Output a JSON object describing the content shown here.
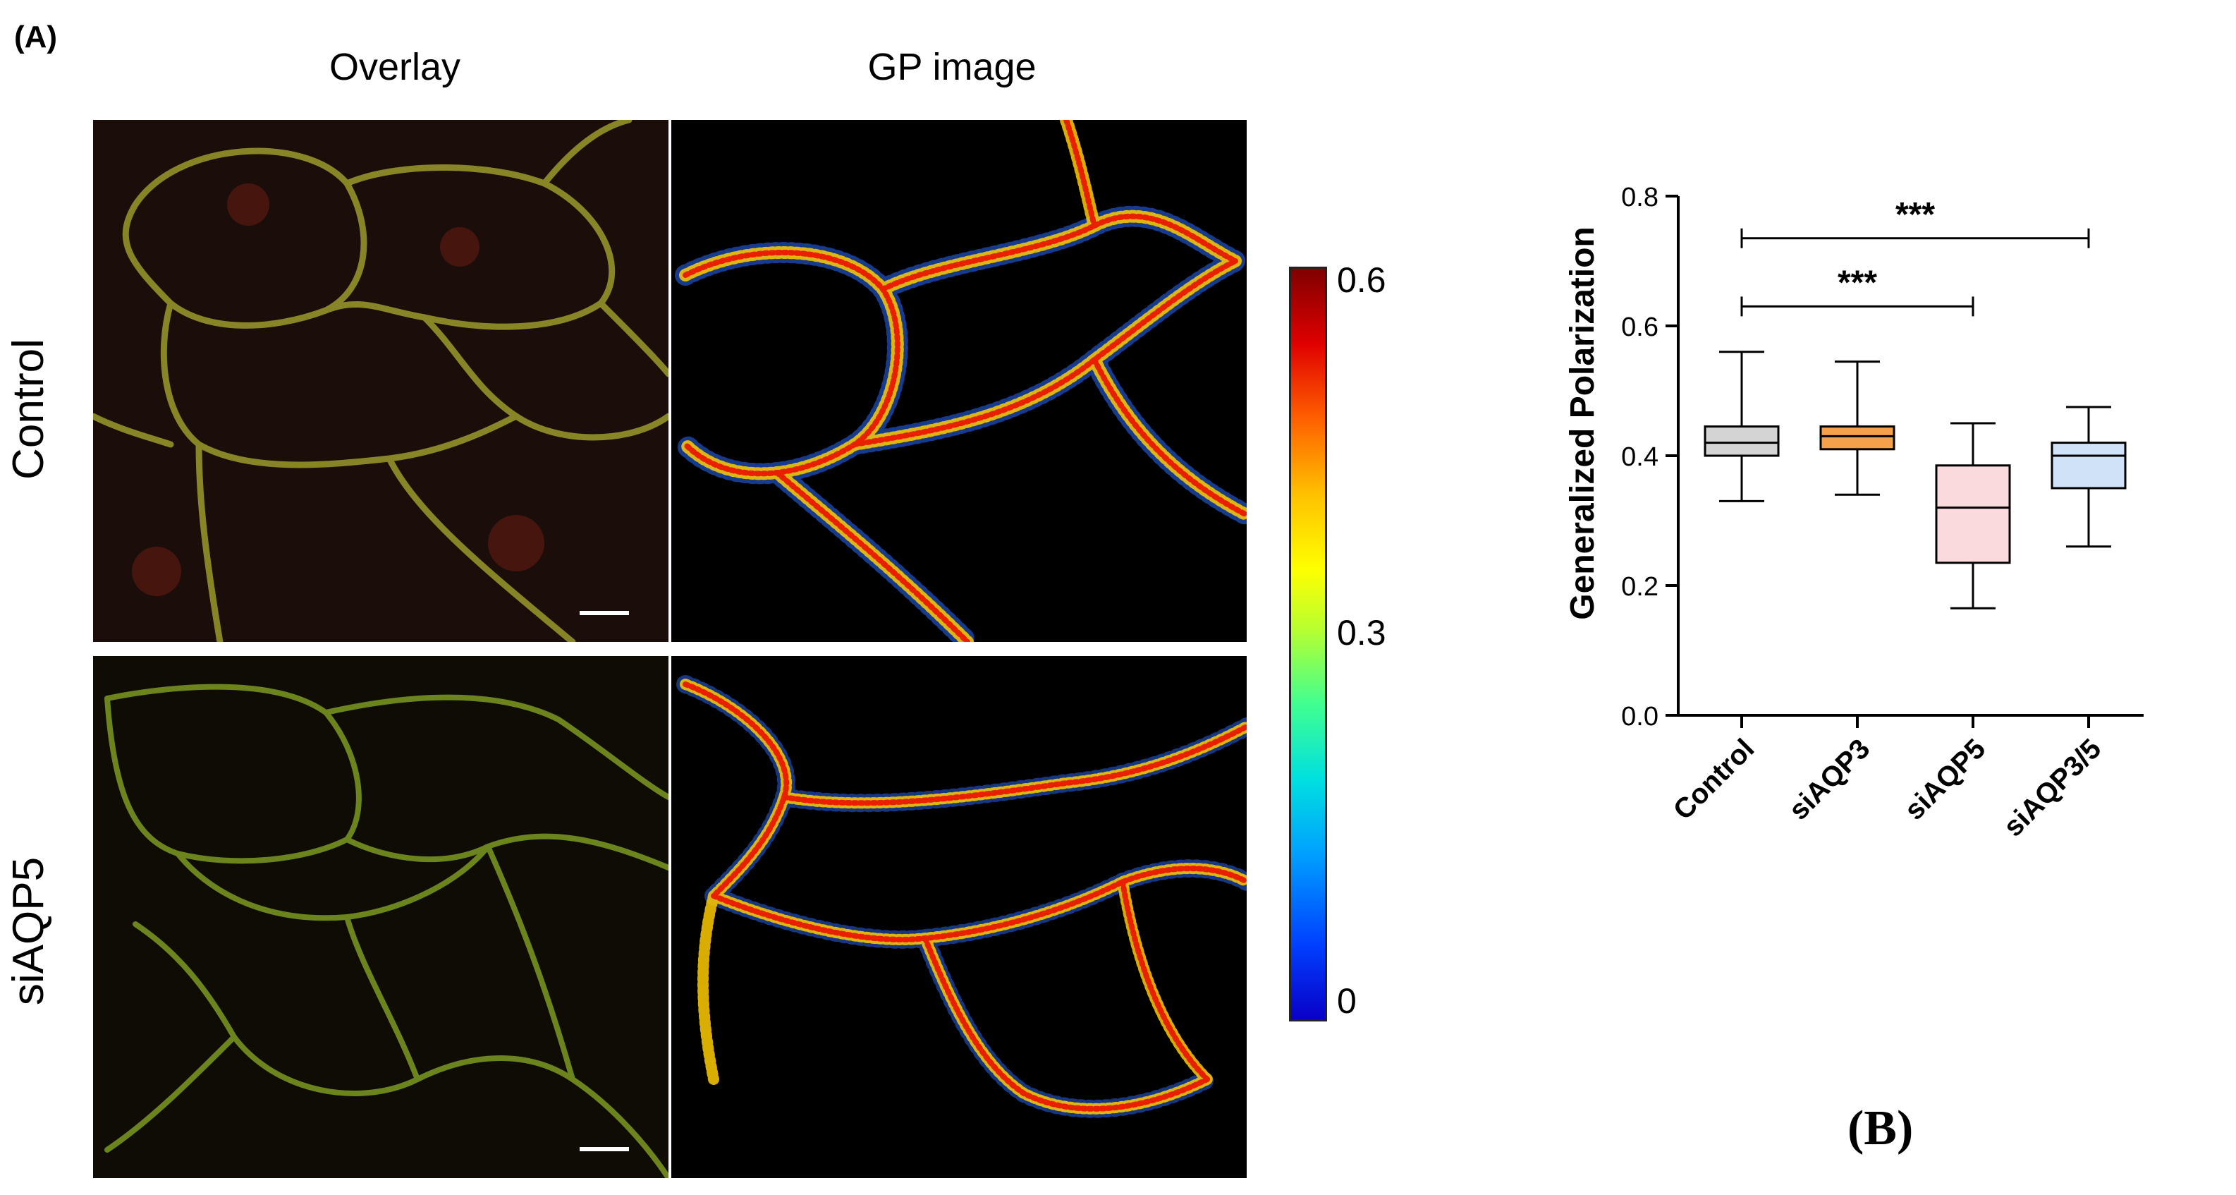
{
  "panel_a": {
    "label": "(A)",
    "columns": [
      "Overlay",
      "GP image"
    ],
    "rows": [
      "Control",
      "siAQP5"
    ],
    "colorbar": {
      "max": "0.6",
      "mid": "0.3",
      "min": "0",
      "colormap": "jet"
    }
  },
  "panel_b": {
    "label": "(B)",
    "significance": [
      {
        "from": "Control",
        "to": "siAQP3/5",
        "text": "***"
      },
      {
        "from": "Control",
        "to": "siAQP5",
        "text": "***"
      }
    ]
  },
  "chart_data": {
    "type": "box",
    "ylabel": "Generalized Polarization",
    "xlabel": "",
    "ylim": [
      0.0,
      0.8
    ],
    "yticks": [
      "0.0",
      "0.2",
      "0.4",
      "0.6",
      "0.8"
    ],
    "categories": [
      "Control",
      "siAQP3",
      "siAQP5",
      "siAQP3/5"
    ],
    "boxes": [
      {
        "category": "Control",
        "min": 0.33,
        "q1": 0.4,
        "median": 0.42,
        "q3": 0.445,
        "max": 0.56,
        "color": "#d4d4d4"
      },
      {
        "category": "siAQP3",
        "min": 0.34,
        "q1": 0.41,
        "median": 0.43,
        "q3": 0.445,
        "max": 0.545,
        "color": "#f5a04a"
      },
      {
        "category": "siAQP5",
        "min": 0.165,
        "q1": 0.235,
        "median": 0.32,
        "q3": 0.385,
        "max": 0.45,
        "color": "#fadadd"
      },
      {
        "category": "siAQP3/5",
        "min": 0.26,
        "q1": 0.35,
        "median": 0.4,
        "q3": 0.42,
        "max": 0.475,
        "color": "#cfe2f7"
      }
    ]
  }
}
